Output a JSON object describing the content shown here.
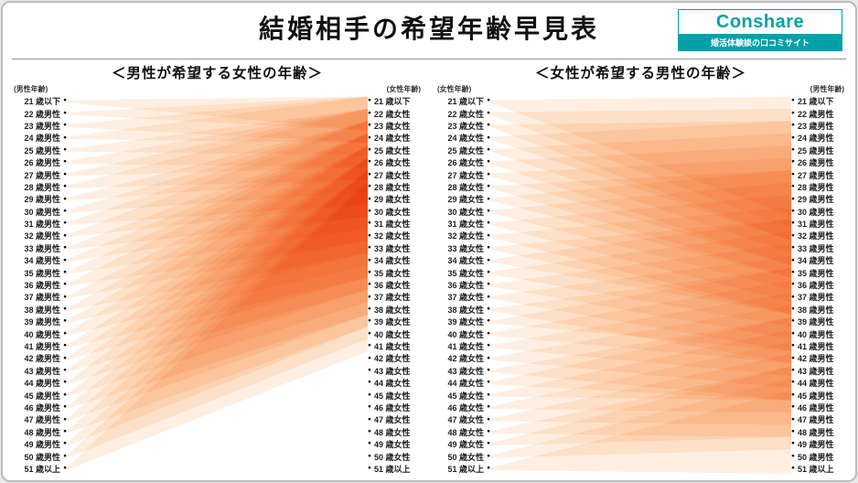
{
  "page": {
    "title": "結婚相手の希望年齢早見表"
  },
  "logo": {
    "name": "Conshare",
    "tagline": "婚活体験談の口コミサイト",
    "color": "#00a2a8"
  },
  "chart_data": {
    "type": "flow",
    "band_color": "#f5831f",
    "age_labels": {
      "men": [
        "21 歳以下",
        "22 歳男性",
        "23 歳男性",
        "24 歳男性",
        "25 歳男性",
        "26 歳男性",
        "27 歳男性",
        "28 歳男性",
        "29 歳男性",
        "30 歳男性",
        "31 歳男性",
        "32 歳男性",
        "33 歳男性",
        "34 歳男性",
        "35 歳男性",
        "36 歳男性",
        "37 歳男性",
        "38 歳男性",
        "39 歳男性",
        "40 歳男性",
        "41 歳男性",
        "42 歳男性",
        "43 歳男性",
        "44 歳男性",
        "45 歳男性",
        "46 歳男性",
        "47 歳男性",
        "48 歳男性",
        "49 歳男性",
        "50 歳男性",
        "51 歳以上"
      ],
      "women": [
        "21 歳以下",
        "22 歳女性",
        "23 歳女性",
        "24 歳女性",
        "25 歳女性",
        "26 歳女性",
        "27 歳女性",
        "28 歳女性",
        "29 歳女性",
        "30 歳女性",
        "31 歳女性",
        "32 歳女性",
        "33 歳女性",
        "34 歳女性",
        "35 歳女性",
        "36 歳女性",
        "37 歳女性",
        "38 歳女性",
        "39 歳女性",
        "40 歳女性",
        "41 歳女性",
        "42 歳女性",
        "43 歳女性",
        "44 歳女性",
        "45 歳女性",
        "46 歳女性",
        "47 歳女性",
        "48 歳女性",
        "49 歳女性",
        "50 歳女性",
        "51 歳以上"
      ]
    },
    "charts": [
      {
        "heading": "＜男性が希望する女性の年齢＞",
        "left_caption": "(男性年齢)",
        "right_caption": "(女性年齢)",
        "left_labels": "men",
        "right_labels": "women",
        "links": [
          [
            0,
            0,
            2
          ],
          [
            1,
            0,
            2
          ],
          [
            2,
            0,
            3
          ],
          [
            3,
            0,
            3
          ],
          [
            4,
            1,
            4
          ],
          [
            5,
            1,
            5
          ],
          [
            6,
            1,
            5
          ],
          [
            7,
            1,
            6
          ],
          [
            8,
            2,
            6
          ],
          [
            9,
            2,
            7
          ],
          [
            10,
            2,
            8
          ],
          [
            11,
            2,
            8
          ],
          [
            12,
            3,
            9
          ],
          [
            13,
            3,
            9
          ],
          [
            14,
            3,
            10
          ],
          [
            15,
            3,
            11
          ],
          [
            16,
            4,
            11
          ],
          [
            17,
            4,
            12
          ],
          [
            18,
            4,
            12
          ],
          [
            19,
            4,
            13
          ],
          [
            20,
            5,
            14
          ],
          [
            21,
            5,
            14
          ],
          [
            22,
            5,
            15
          ],
          [
            23,
            5,
            15
          ],
          [
            24,
            6,
            16
          ],
          [
            25,
            6,
            17
          ],
          [
            26,
            6,
            17
          ],
          [
            27,
            6,
            18
          ],
          [
            28,
            7,
            18
          ],
          [
            29,
            7,
            19
          ],
          [
            30,
            7,
            20
          ]
        ]
      },
      {
        "heading": "＜女性が希望する男性の年齢＞",
        "left_caption": "(女性年齢)",
        "right_caption": "(男性年齢)",
        "left_labels": "women",
        "right_labels": "men",
        "links": [
          [
            0,
            0,
            9
          ],
          [
            1,
            1,
            10
          ],
          [
            2,
            2,
            11
          ],
          [
            3,
            2,
            11
          ],
          [
            4,
            3,
            12
          ],
          [
            5,
            4,
            13
          ],
          [
            6,
            5,
            13
          ],
          [
            7,
            6,
            14
          ],
          [
            8,
            6,
            14
          ],
          [
            9,
            7,
            15
          ],
          [
            10,
            8,
            16
          ],
          [
            11,
            9,
            17
          ],
          [
            12,
            10,
            17
          ],
          [
            13,
            10,
            17
          ],
          [
            14,
            11,
            18
          ],
          [
            15,
            12,
            19
          ],
          [
            16,
            13,
            20
          ],
          [
            17,
            14,
            21
          ],
          [
            18,
            14,
            20
          ],
          [
            19,
            15,
            21
          ],
          [
            20,
            16,
            22
          ],
          [
            21,
            17,
            23
          ],
          [
            22,
            18,
            24
          ],
          [
            23,
            18,
            24
          ],
          [
            24,
            19,
            24
          ],
          [
            25,
            20,
            25
          ],
          [
            26,
            21,
            26
          ],
          [
            27,
            22,
            27
          ],
          [
            28,
            22,
            27
          ],
          [
            29,
            23,
            28
          ],
          [
            30,
            24,
            30
          ]
        ]
      }
    ]
  }
}
